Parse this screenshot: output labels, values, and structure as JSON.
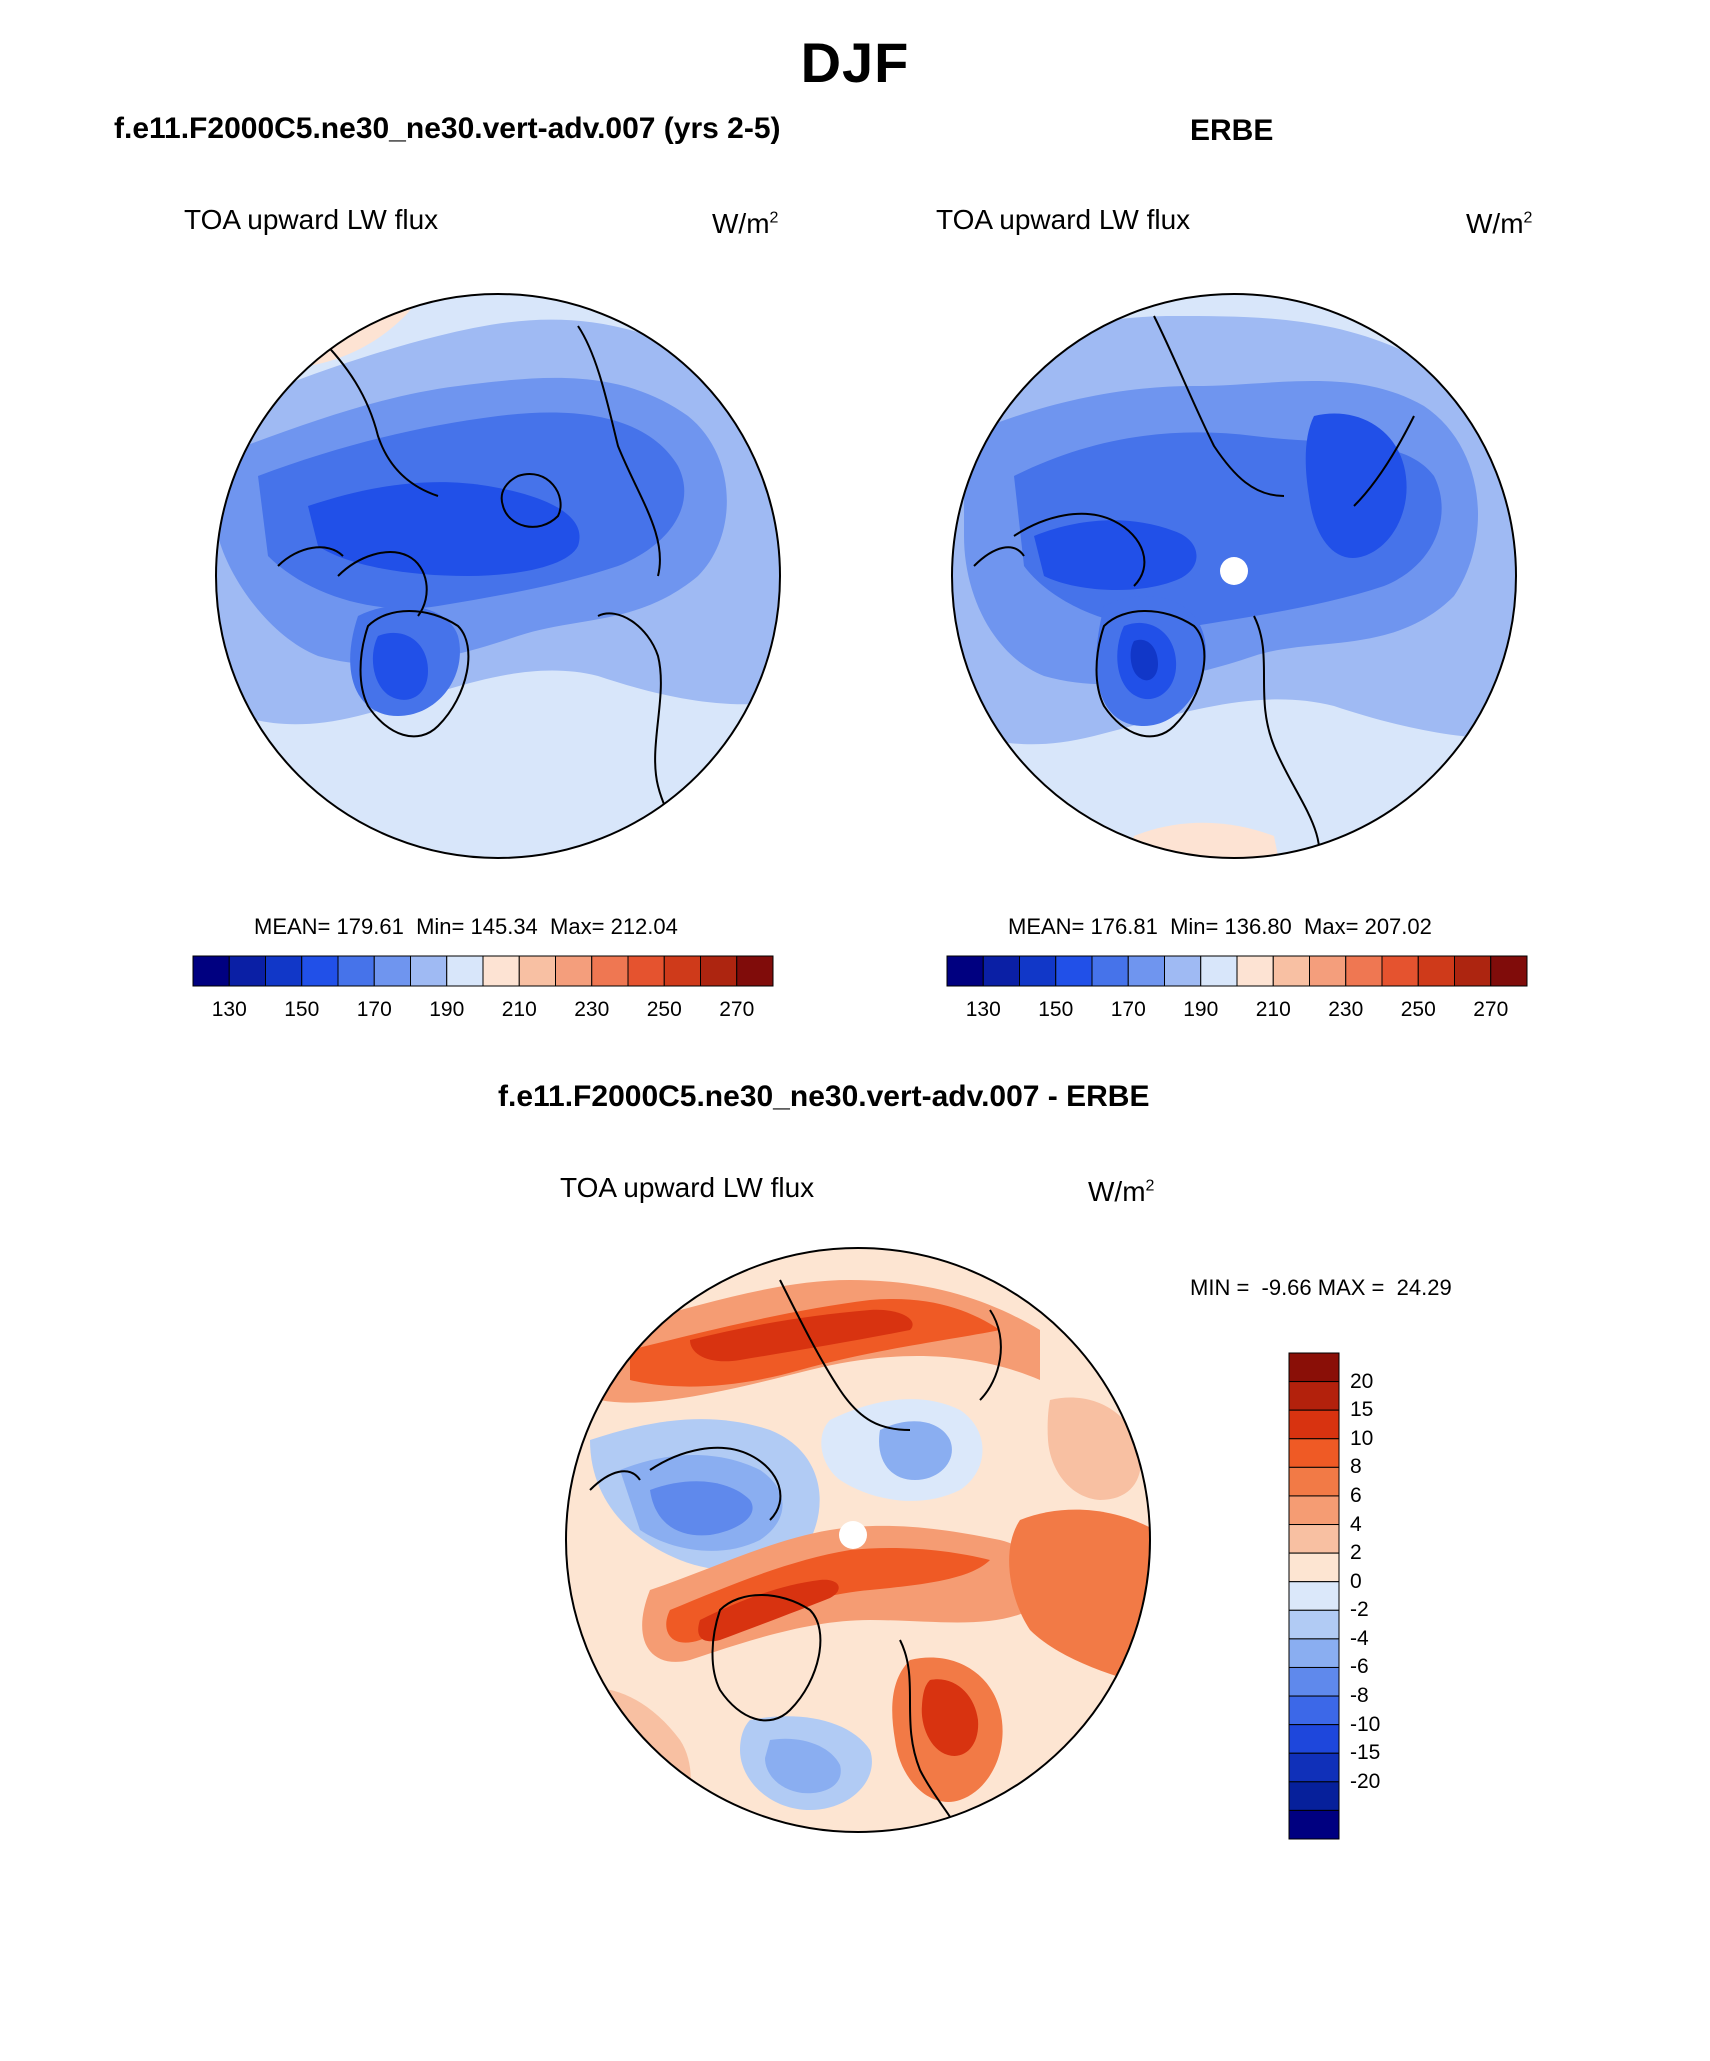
{
  "page": {
    "title": "DJF"
  },
  "panels": [
    {
      "case_title": "f.e11.F2000C5.ne30_ne30.vert-adv.007 (yrs 2-5)",
      "label": "TOA upward LW flux",
      "units_base": "W/m",
      "units_exp": "2",
      "stats": {
        "mean_label": "MEAN=",
        "mean": "179.61",
        "min_label": "Min=",
        "min": "145.34",
        "max_label": "Max=",
        "max": "212.04"
      },
      "map": {
        "projection": "north-polar-stereographic",
        "fill": "blue-dominant"
      }
    },
    {
      "case_title": "ERBE",
      "label": "TOA upward LW flux",
      "units_base": "W/m",
      "units_exp": "2",
      "stats": {
        "mean_label": "MEAN=",
        "mean": "176.81",
        "min_label": "Min=",
        "min": "136.80",
        "max_label": "Max=",
        "max": "207.02"
      },
      "map": {
        "projection": "north-polar-stereographic",
        "fill": "blue-dominant",
        "missing_pole": true
      }
    }
  ],
  "colorbar_abs": {
    "colors": [
      "#000080",
      "#0a1fa5",
      "#1137c8",
      "#2150e8",
      "#4673ea",
      "#6f95ef",
      "#9fbaf3",
      "#d8e6fa",
      "#fde3d3",
      "#f8c0a3",
      "#f49e7c",
      "#ef7752",
      "#e5532f",
      "#cf3a1a",
      "#ad2510",
      "#800c0a"
    ],
    "tick_labels": [
      "130",
      "150",
      "170",
      "190",
      "210",
      "230",
      "250",
      "270"
    ]
  },
  "difference": {
    "case_title": "f.e11.F2000C5.ne30_ne30.vert-adv.007 - ERBE",
    "label": "TOA upward LW flux",
    "units_base": "W/m",
    "units_exp": "2",
    "minmax_text": "MIN =  -9.66 MAX =  24.29",
    "map": {
      "projection": "north-polar-stereographic",
      "fill": "mixed-red-blue",
      "missing_pole": true
    },
    "colorbar": {
      "colors": [
        "#8a0f07",
        "#b3210c",
        "#d83310",
        "#ef5a25",
        "#f27a46",
        "#f59c73",
        "#f8c0a2",
        "#fde5d2",
        "#dbe8fa",
        "#b1cbf4",
        "#8aaef1",
        "#5f89ec",
        "#3c68e8",
        "#1e47dc",
        "#1030b9",
        "#06209b",
        "#000080"
      ],
      "tick_labels": [
        "20",
        "15",
        "10",
        "8",
        "6",
        "4",
        "2",
        "0",
        "-2",
        "-4",
        "-6",
        "-8",
        "-10",
        "-15",
        "-20"
      ]
    }
  }
}
